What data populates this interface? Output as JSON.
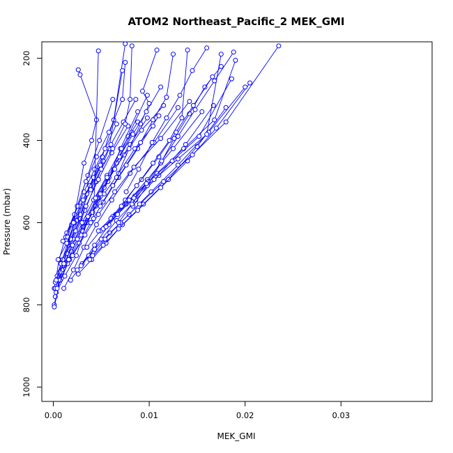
{
  "chart_data": {
    "type": "line",
    "title": "ATOM2 Northeast_Pacific_2 MEK_GMI",
    "xlabel": "MEK_GMI",
    "ylabel": "Pressure (mbar)",
    "xlim": [
      -0.0012,
      0.0395
    ],
    "ylim": [
      1035,
      160
    ],
    "y_reversed": true,
    "x_ticks": [
      0.0,
      0.01,
      0.02,
      0.03
    ],
    "x_tick_labels": [
      "0.00",
      "0.01",
      "0.02",
      "0.03"
    ],
    "y_ticks": [
      200,
      400,
      600,
      800,
      1000
    ],
    "y_tick_labels": [
      "200",
      "400",
      "600",
      "800",
      "1000"
    ],
    "grid": false,
    "legend": "none",
    "marker": "open-circle",
    "colors": {
      "series": "#0000ff",
      "axes": "#000000",
      "background": "#ffffff"
    },
    "series": [
      {
        "x": [
          0.0001,
          0.0008,
          0.0016,
          0.0028,
          0.0038,
          0.0051,
          0.0063,
          0.0075
        ],
        "y": [
          800,
          715,
          655,
          590,
          510,
          440,
          350,
          165
        ]
      },
      {
        "x": [
          0.0002,
          0.0011,
          0.0021,
          0.0033,
          0.0045,
          0.0058,
          0.0072
        ],
        "y": [
          780,
          705,
          640,
          570,
          500,
          420,
          230
        ]
      },
      {
        "x": [
          0.0001,
          0.0006,
          0.0014,
          0.0025,
          0.0036,
          0.0048,
          0.0062
        ],
        "y": [
          760,
          690,
          625,
          560,
          485,
          400,
          300
        ]
      },
      {
        "x": [
          0.0003,
          0.0012,
          0.0024,
          0.0035,
          0.0047,
          0.0063,
          0.0078,
          0.0098
        ],
        "y": [
          770,
          730,
          680,
          600,
          540,
          470,
          390,
          290
        ]
      },
      {
        "x": [
          0.0002,
          0.0009,
          0.0019,
          0.0031,
          0.0044,
          0.0057,
          0.007,
          0.0088
        ],
        "y": [
          760,
          720,
          670,
          610,
          560,
          500,
          420,
          330
        ]
      },
      {
        "x": [
          0.0001,
          0.0007,
          0.0017,
          0.0029,
          0.0041,
          0.0053,
          0.0066,
          0.0082
        ],
        "y": [
          805,
          740,
          690,
          630,
          575,
          515,
          455,
          380
        ]
      },
      {
        "x": [
          0.0004,
          0.0015,
          0.0027,
          0.0039,
          0.0052,
          0.0068,
          0.0088,
          0.011
        ],
        "y": [
          760,
          700,
          650,
          600,
          550,
          490,
          420,
          340
        ]
      },
      {
        "x": [
          0.0011,
          0.0021,
          0.0032,
          0.0045,
          0.0061,
          0.008,
          0.0105,
          0.013
        ],
        "y": [
          760,
          715,
          660,
          605,
          545,
          480,
          405,
          320
        ]
      },
      {
        "x": [
          0.0009,
          0.002,
          0.0033,
          0.0047,
          0.0064,
          0.0084,
          0.0112,
          0.0142
        ],
        "y": [
          715,
          680,
          630,
          580,
          525,
          465,
          395,
          305
        ]
      },
      {
        "x": [
          0.0018,
          0.003,
          0.0043,
          0.0058,
          0.0076,
          0.0098,
          0.0125,
          0.0155
        ],
        "y": [
          740,
          700,
          655,
          605,
          555,
          495,
          420,
          330
        ]
      },
      {
        "x": [
          0.0025,
          0.0037,
          0.005,
          0.0066,
          0.0086,
          0.011,
          0.0138,
          0.0167
        ],
        "y": [
          715,
          680,
          640,
          595,
          545,
          485,
          410,
          315
        ]
      },
      {
        "x": [
          0.0026,
          0.004,
          0.0055,
          0.0072,
          0.0094,
          0.012,
          0.015,
          0.018
        ],
        "y": [
          725,
          690,
          650,
          605,
          555,
          495,
          415,
          320
        ]
      },
      {
        "x": [
          0.0038,
          0.0052,
          0.0068,
          0.0088,
          0.0112,
          0.014,
          0.017,
          0.0205
        ],
        "y": [
          690,
          655,
          615,
          570,
          515,
          450,
          370,
          260
        ]
      },
      {
        "x": [
          0.0029,
          0.0043,
          0.0059,
          0.0079,
          0.0102,
          0.013,
          0.0162,
          0.02
        ],
        "y": [
          705,
          665,
          625,
          580,
          525,
          460,
          380,
          270
        ]
      },
      {
        "x": [
          0.0041,
          0.0054,
          0.007,
          0.009,
          0.0115,
          0.0145,
          0.018,
          0.0235
        ],
        "y": [
          680,
          640,
          600,
          555,
          500,
          435,
          355,
          170
        ]
      },
      {
        "x": [
          0.0035,
          0.0049,
          0.0065,
          0.0085,
          0.0108,
          0.0136,
          0.0168,
          0.019
        ],
        "y": [
          660,
          620,
          580,
          535,
          480,
          420,
          350,
          205
        ]
      },
      {
        "x": [
          0.0047,
          0.0062,
          0.0079,
          0.0099,
          0.0124,
          0.0152,
          0.0186
        ],
        "y": [
          620,
          585,
          545,
          500,
          450,
          390,
          250
        ]
      },
      {
        "x": [
          0.0052,
          0.0067,
          0.0084,
          0.0105,
          0.013,
          0.016,
          0.0175
        ],
        "y": [
          615,
          580,
          540,
          495,
          445,
          385,
          190
        ]
      },
      {
        "x": [
          0.003,
          0.0041,
          0.0053,
          0.0068,
          0.0085,
          0.0104
        ],
        "y": [
          620,
          575,
          530,
          480,
          420,
          365
        ]
      },
      {
        "x": [
          0.002,
          0.0032,
          0.0044,
          0.0058,
          0.0074,
          0.0092,
          0.0115
        ],
        "y": [
          655,
          600,
          545,
          490,
          435,
          375,
          315
        ]
      },
      {
        "x": [
          0.0016,
          0.0025,
          0.0036,
          0.0049,
          0.0064,
          0.008,
          0.0098
        ],
        "y": [
          690,
          640,
          585,
          530,
          470,
          410,
          345
        ]
      },
      {
        "x": [
          0.0012,
          0.002,
          0.003,
          0.0042,
          0.0056,
          0.0071,
          0.0088
        ],
        "y": [
          700,
          655,
          600,
          545,
          485,
          420,
          355
        ]
      },
      {
        "x": [
          0.0007,
          0.0014,
          0.0023,
          0.0034,
          0.0047,
          0.0061,
          0.0078
        ],
        "y": [
          720,
          675,
          620,
          560,
          495,
          430,
          365
        ]
      },
      {
        "x": [
          0.0004,
          0.001,
          0.0018,
          0.0028,
          0.0039,
          0.0052
        ],
        "y": [
          730,
          690,
          640,
          580,
          515,
          450
        ]
      },
      {
        "x": [
          0.0002,
          0.0008,
          0.0015,
          0.0024,
          0.0035,
          0.0048
        ],
        "y": [
          745,
          700,
          650,
          595,
          530,
          465
        ]
      },
      {
        "x": [
          0.001,
          0.0019,
          0.0028,
          0.0038,
          0.0049,
          0.006,
          0.0073,
          0.0086
        ],
        "y": [
          645,
          605,
          560,
          510,
          460,
          410,
          355,
          300
        ]
      },
      {
        "x": [
          0.0013,
          0.0022,
          0.0032,
          0.0043,
          0.0054,
          0.0066
        ],
        "y": [
          635,
          580,
          525,
          470,
          420,
          360
        ]
      },
      {
        "x": [
          0.0015,
          0.0025,
          0.0034,
          0.0045,
          0.0058,
          0.0072,
          0.0075
        ],
        "y": [
          635,
          560,
          500,
          440,
          380,
          300,
          210
        ]
      },
      {
        "x": [
          0.0005,
          0.0014,
          0.0022,
          0.0031,
          0.0042
        ],
        "y": [
          690,
          650,
          600,
          545,
          490
        ]
      },
      {
        "x": [
          0.0003,
          0.0011,
          0.0021,
          0.0032,
          0.004,
          0.0045,
          0.0028,
          0.0026
        ],
        "y": [
          740,
          700,
          600,
          455,
          400,
          350,
          240,
          228
        ]
      },
      {
        "x": [
          0.0042,
          0.0047
        ],
        "y": [
          590,
          182
        ]
      },
      {
        "x": [
          0.0066,
          0.0079,
          0.0091,
          0.01,
          0.0093,
          0.0108
        ],
        "y": [
          490,
          420,
          360,
          310,
          280,
          180
        ]
      },
      {
        "x": [
          0.0076,
          0.0089,
          0.0103,
          0.0118,
          0.0132,
          0.0145,
          0.016
        ],
        "y": [
          525,
          470,
          405,
          345,
          290,
          230,
          175
        ]
      },
      {
        "x": [
          0.0083,
          0.0098,
          0.0112,
          0.0126,
          0.0142,
          0.0158,
          0.0175
        ],
        "y": [
          560,
          510,
          455,
          395,
          335,
          270,
          220
        ]
      },
      {
        "x": [
          0.006,
          0.0075,
          0.0092,
          0.011,
          0.0128,
          0.0146,
          0.0166
        ],
        "y": [
          590,
          545,
          495,
          440,
          380,
          315,
          245
        ]
      },
      {
        "x": [
          0.0068,
          0.0082,
          0.0097,
          0.0113,
          0.013,
          0.0148,
          0.0168,
          0.0188
        ],
        "y": [
          600,
          555,
          505,
          450,
          390,
          325,
          255,
          185
        ]
      },
      {
        "x": [
          0.0055,
          0.0071,
          0.0087,
          0.0104,
          0.0121,
          0.0134,
          0.014
        ],
        "y": [
          610,
          560,
          510,
          455,
          400,
          345,
          180
        ]
      },
      {
        "x": [
          0.0049,
          0.0062,
          0.0076,
          0.0091,
          0.0104,
          0.0118,
          0.0125
        ],
        "y": [
          560,
          510,
          460,
          405,
          350,
          295,
          190
        ]
      },
      {
        "x": [
          0.0044,
          0.0056,
          0.0069,
          0.0083,
          0.0097,
          0.0112
        ],
        "y": [
          540,
          490,
          440,
          385,
          330,
          270
        ]
      },
      {
        "x": [
          0.0039,
          0.005,
          0.0062,
          0.0075,
          0.008,
          0.0082
        ],
        "y": [
          520,
          470,
          420,
          360,
          300,
          170
        ]
      }
    ]
  }
}
